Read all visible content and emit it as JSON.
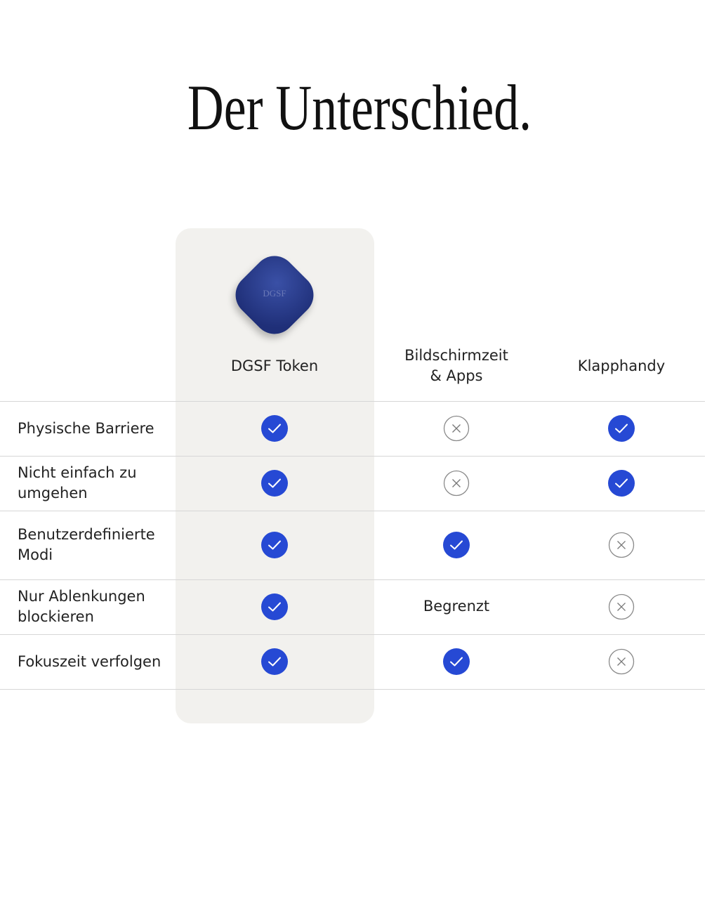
{
  "title": "Der Unterschied.",
  "token_label": "DGSF",
  "table": {
    "columns": [
      "DGSF Token",
      "Bildschirmzeit\n& Apps",
      "Klapphandy"
    ],
    "rows": [
      {
        "label": "Physische Barriere",
        "cells": [
          true,
          false,
          true
        ]
      },
      {
        "label": "Nicht einfach zu\numgehen",
        "cells": [
          true,
          false,
          true
        ]
      },
      {
        "label": "Benutzerdefinierte\nModi",
        "cells": [
          true,
          true,
          false
        ]
      },
      {
        "label": "Nur Ablenkungen\nblockieren",
        "cells": [
          true,
          "Begrenzt",
          false
        ]
      },
      {
        "label": "Fokuszeit verfolgen",
        "cells": [
          true,
          true,
          false
        ]
      }
    ]
  }
}
